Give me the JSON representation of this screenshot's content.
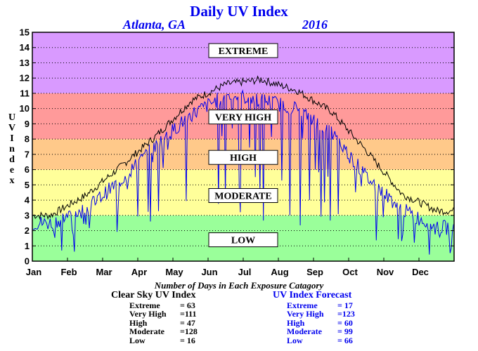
{
  "title": "Daily UV Index",
  "location": "Atlanta, GA",
  "year": "2016",
  "axis": {
    "ylabel": "UV Index",
    "yticks": [
      "0",
      "1",
      "2",
      "3",
      "4",
      "5",
      "6",
      "7",
      "8",
      "9",
      "10",
      "11",
      "12",
      "13",
      "14",
      "15"
    ],
    "xticks": [
      "Jan",
      "Feb",
      "Mar",
      "Apr",
      "May",
      "Jun",
      "Jul",
      "Aug",
      "Sep",
      "Oct",
      "Nov",
      "Dec"
    ]
  },
  "zones": [
    {
      "label": "LOW",
      "from": 0,
      "to": 3,
      "color": "#9aff9a"
    },
    {
      "label": "MODERATE",
      "from": 3,
      "to": 6,
      "color": "#ffff9a"
    },
    {
      "label": "HIGH",
      "from": 6,
      "to": 8,
      "color": "#ffc98a"
    },
    {
      "label": "VERY HIGH",
      "from": 8,
      "to": 11,
      "color": "#ff9a9a"
    },
    {
      "label": "EXTREME",
      "from": 11,
      "to": 15,
      "color": "#d99aff"
    }
  ],
  "counts_title": "Number of Days in Each Exposure Catagory",
  "clear_sky": {
    "title": "Clear Sky UV Index",
    "rows": [
      {
        "name": "Extreme",
        "value": "= 63"
      },
      {
        "name": "Very High",
        "value": "=111"
      },
      {
        "name": "High",
        "value": "= 47"
      },
      {
        "name": "Moderate",
        "value": "=128"
      },
      {
        "name": "Low",
        "value": "= 16"
      }
    ]
  },
  "forecast": {
    "title": "UV Index Forecast",
    "rows": [
      {
        "name": "Extreme",
        "value": "= 17"
      },
      {
        "name": "Very High",
        "value": "=123"
      },
      {
        "name": "High",
        "value": "= 60"
      },
      {
        "name": "Moderate",
        "value": "= 99"
      },
      {
        "name": "Low",
        "value": "= 66"
      }
    ]
  },
  "chart_data": {
    "type": "line",
    "title": "Daily UV Index",
    "ylabel": "UV Index",
    "ylim": [
      0,
      15
    ],
    "x": [
      "Jan",
      "Feb",
      "Mar",
      "Apr",
      "May",
      "Jun",
      "Jul",
      "Aug",
      "Sep",
      "Oct",
      "Nov",
      "Dec"
    ],
    "grid": true,
    "series": [
      {
        "color": "#000000",
        "values": [
          3.0,
          4.3,
          6.2,
          8.2,
          10.5,
          11.6,
          11.9,
          11.2,
          9.8,
          7.2,
          4.4,
          3.3
        ]
      },
      {
        "color": "#0000ee",
        "values": [
          2.5,
          3.4,
          5.3,
          7.6,
          9.6,
          10.9,
          10.6,
          10.0,
          8.4,
          5.5,
          3.4,
          2.2
        ]
      }
    ]
  }
}
